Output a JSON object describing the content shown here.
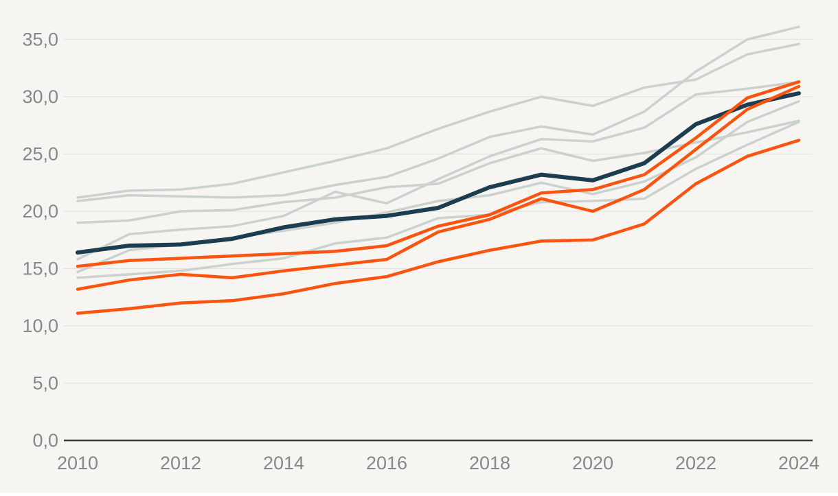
{
  "chart_data": {
    "type": "line",
    "title": "",
    "xlabel": "",
    "ylabel": "",
    "x": [
      2010,
      2011,
      2012,
      2013,
      2014,
      2015,
      2016,
      2017,
      2018,
      2019,
      2020,
      2021,
      2022,
      2023,
      2024
    ],
    "x_tick_years": [
      2010,
      2012,
      2014,
      2016,
      2018,
      2020,
      2022,
      2024
    ],
    "x_tick_labels": [
      "2010",
      "2012",
      "2014",
      "2016",
      "2018",
      "2020",
      "2022",
      "2024"
    ],
    "y_ticks": [
      0,
      5,
      10,
      15,
      20,
      25,
      30,
      35
    ],
    "y_tick_labels": [
      "0,0",
      "5,0",
      "10,0",
      "15,0",
      "20,0",
      "25,0",
      "30,0",
      "35,0"
    ],
    "ylim": [
      0,
      37.5
    ],
    "grid": "horizontal",
    "legend_position": "none",
    "series": [
      {
        "name": "gray-a",
        "role": "context",
        "color_key": "gray_line",
        "width": 3.5,
        "values": [
          21.2,
          21.8,
          21.9,
          22.4,
          23.4,
          24.4,
          25.5,
          27.2,
          28.7,
          30.0,
          29.2,
          30.8,
          31.5,
          33.7,
          34.6
        ]
      },
      {
        "name": "gray-b",
        "role": "context",
        "color_key": "gray_line",
        "width": 3.5,
        "values": [
          20.9,
          21.4,
          21.3,
          21.2,
          21.4,
          22.3,
          23.0,
          24.6,
          26.5,
          27.4,
          26.7,
          28.7,
          32.2,
          35.0,
          36.1
        ]
      },
      {
        "name": "gray-c",
        "role": "context",
        "color_key": "gray_line",
        "width": 3.5,
        "values": [
          19.0,
          19.2,
          20.0,
          20.1,
          20.8,
          21.2,
          22.1,
          22.4,
          24.2,
          25.5,
          24.4,
          25.1,
          26.0,
          26.9,
          27.9
        ]
      },
      {
        "name": "gray-d",
        "role": "context",
        "color_key": "gray_line",
        "width": 3.5,
        "values": [
          15.8,
          18.0,
          18.4,
          18.7,
          19.6,
          21.7,
          20.7,
          22.8,
          24.8,
          26.3,
          26.1,
          27.3,
          30.2,
          30.7,
          31.3
        ]
      },
      {
        "name": "gray-e",
        "role": "context",
        "color_key": "gray_line",
        "width": 3.5,
        "values": [
          14.7,
          16.6,
          17.1,
          17.7,
          18.3,
          19.0,
          19.9,
          20.9,
          21.4,
          22.5,
          21.5,
          22.6,
          24.7,
          27.8,
          29.6
        ]
      },
      {
        "name": "gray-f",
        "role": "context",
        "color_key": "gray_line",
        "width": 3.5,
        "values": [
          14.2,
          14.5,
          14.8,
          15.4,
          15.9,
          17.2,
          17.7,
          19.4,
          19.7,
          20.8,
          20.9,
          21.1,
          23.7,
          25.8,
          27.8
        ]
      },
      {
        "name": "navy-highlight",
        "role": "highlight",
        "color_key": "navy_line",
        "width": 6,
        "values": [
          16.4,
          17.0,
          17.1,
          17.6,
          18.6,
          19.3,
          19.6,
          20.3,
          22.1,
          23.2,
          22.7,
          24.2,
          27.6,
          29.3,
          30.3
        ]
      },
      {
        "name": "orange-a",
        "role": "emphasis",
        "color_key": "orange_line",
        "width": 4.5,
        "values": [
          15.2,
          15.7,
          15.9,
          16.1,
          16.3,
          16.5,
          17.0,
          18.7,
          19.7,
          21.6,
          21.9,
          23.2,
          26.4,
          29.9,
          31.3
        ]
      },
      {
        "name": "orange-b",
        "role": "emphasis",
        "color_key": "orange_line",
        "width": 4.5,
        "values": [
          13.2,
          14.0,
          14.5,
          14.2,
          14.8,
          15.3,
          15.8,
          18.2,
          19.3,
          21.1,
          20.0,
          21.9,
          25.4,
          28.9,
          30.9
        ]
      },
      {
        "name": "orange-c",
        "role": "emphasis",
        "color_key": "orange_line",
        "width": 4.5,
        "values": [
          11.1,
          11.5,
          12.0,
          12.2,
          12.8,
          13.7,
          14.3,
          15.6,
          16.6,
          17.4,
          17.5,
          18.9,
          22.4,
          24.8,
          26.2
        ]
      }
    ]
  },
  "colors": {
    "background": "#f6f5f2",
    "grid": "#e5e3df",
    "axis": "#3b3b3b",
    "tick_label": "#878787",
    "gray_line": "#cbd1ce",
    "orange_line": "#fa540e",
    "navy_line": "#1c3c4f"
  }
}
